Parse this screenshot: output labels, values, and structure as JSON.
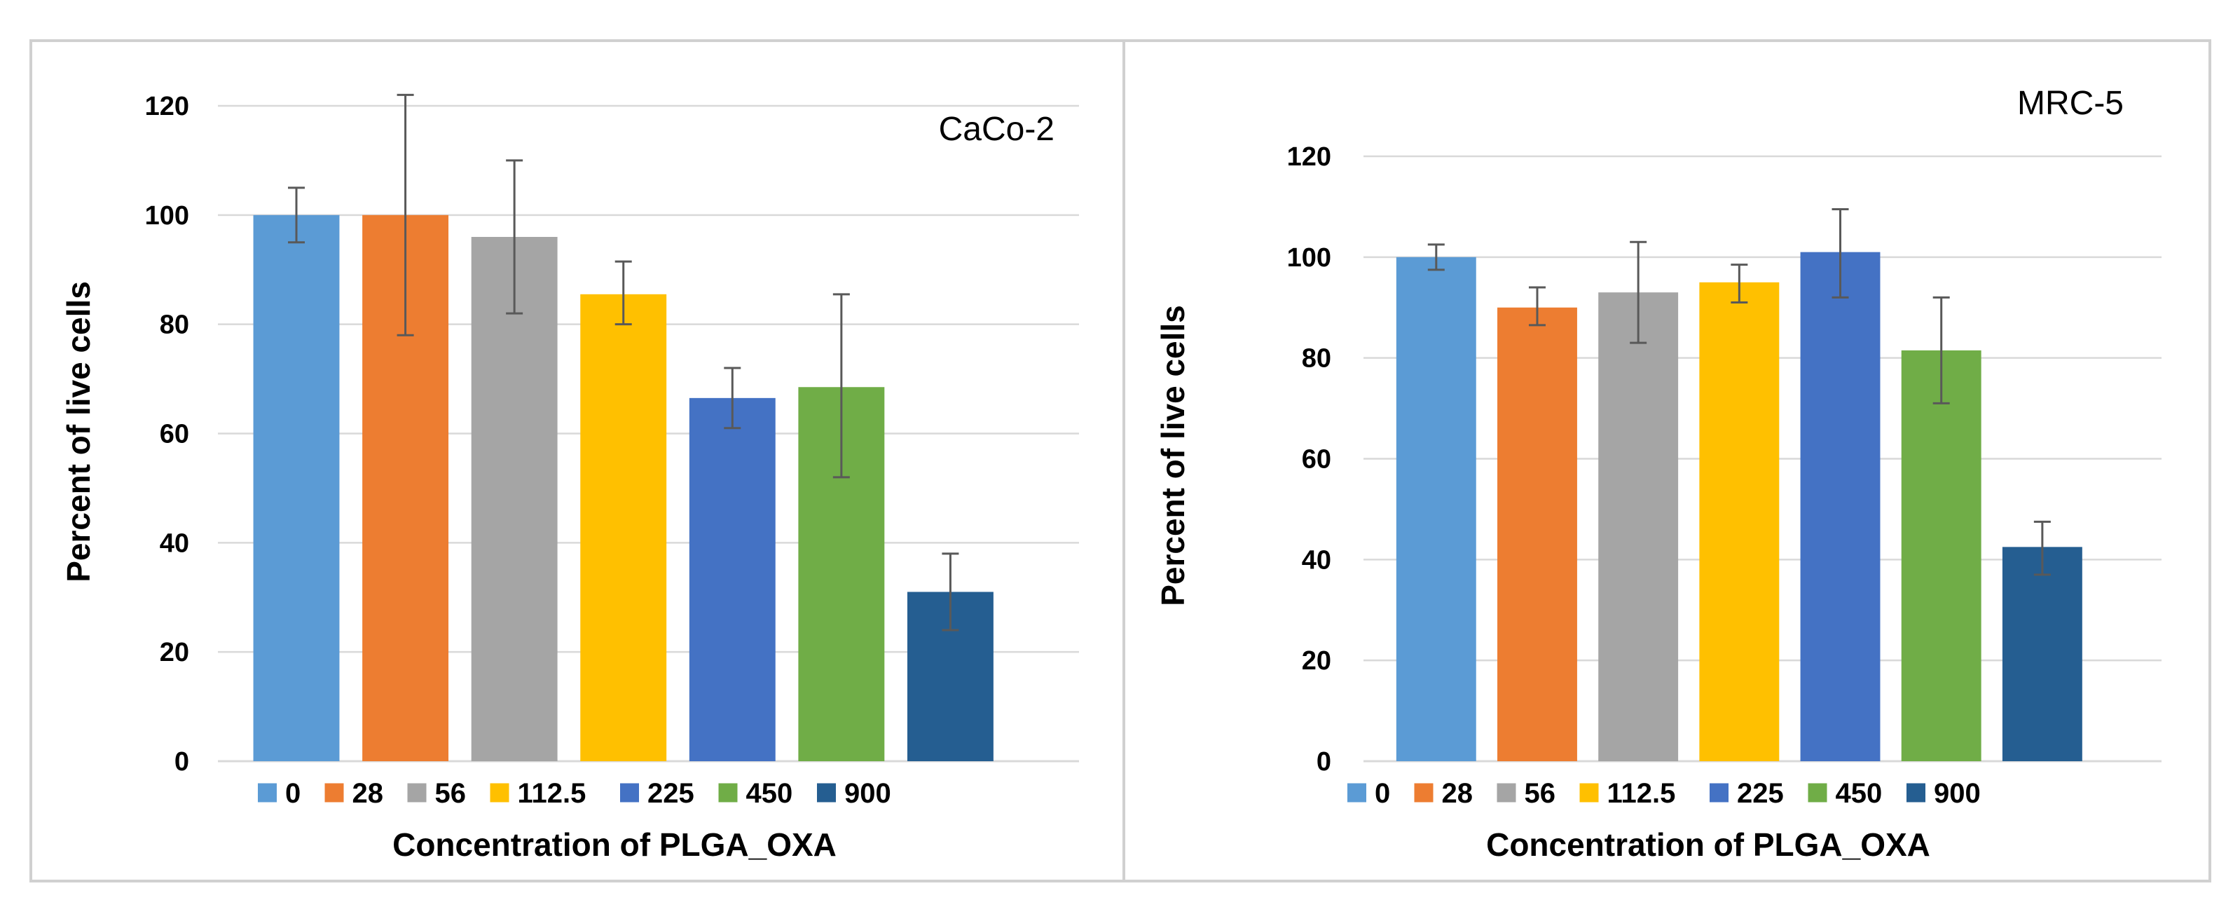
{
  "chart_data": [
    {
      "type": "bar",
      "title": "CaCo-2",
      "xlabel": "Concentration of PLGA_OXA",
      "ylabel": "Percent of live cells",
      "ylim": [
        0,
        120
      ],
      "yticks": [
        0,
        20,
        40,
        60,
        80,
        100,
        120
      ],
      "grid": true,
      "legend_position": "bottom",
      "series": [
        {
          "name": "0",
          "value": 100,
          "error_low": 95,
          "error_high": 105,
          "color": "#5B9BD5"
        },
        {
          "name": "28",
          "value": 100,
          "error_low": 78,
          "error_high": 122,
          "color": "#ED7D31"
        },
        {
          "name": "56",
          "value": 96,
          "error_low": 82,
          "error_high": 110,
          "color": "#A5A5A5"
        },
        {
          "name": "112.5",
          "value": 85.5,
          "error_low": 80,
          "error_high": 91.5,
          "color": "#FFC000"
        },
        {
          "name": "225",
          "value": 66.5,
          "error_low": 61,
          "error_high": 72,
          "color": "#4472C4"
        },
        {
          "name": "450",
          "value": 68.5,
          "error_low": 52,
          "error_high": 85.5,
          "color": "#70AD47"
        },
        {
          "name": "900",
          "value": 31,
          "error_low": 24,
          "error_high": 38,
          "color": "#255E91"
        }
      ]
    },
    {
      "type": "bar",
      "title": "MRC-5",
      "xlabel": "Concentration of PLGA_OXA",
      "ylabel": "Percent of live cells",
      "ylim": [
        0,
        120
      ],
      "yticks": [
        0,
        20,
        40,
        60,
        80,
        100,
        120
      ],
      "grid": true,
      "legend_position": "bottom",
      "series": [
        {
          "name": "0",
          "value": 100,
          "error_low": 97.5,
          "error_high": 102.5,
          "color": "#5B9BD5"
        },
        {
          "name": "28",
          "value": 90,
          "error_low": 86.5,
          "error_high": 94,
          "color": "#ED7D31"
        },
        {
          "name": "56",
          "value": 93,
          "error_low": 83,
          "error_high": 103,
          "color": "#A5A5A5"
        },
        {
          "name": "112.5",
          "value": 95,
          "error_low": 91,
          "error_high": 98.5,
          "color": "#FFC000"
        },
        {
          "name": "225",
          "value": 101,
          "error_low": 92,
          "error_high": 109.5,
          "color": "#4472C4"
        },
        {
          "name": "450",
          "value": 81.5,
          "error_low": 71,
          "error_high": 92,
          "color": "#70AD47"
        },
        {
          "name": "900",
          "value": 42.5,
          "error_low": 37,
          "error_high": 47.5,
          "color": "#255E91"
        }
      ]
    }
  ]
}
